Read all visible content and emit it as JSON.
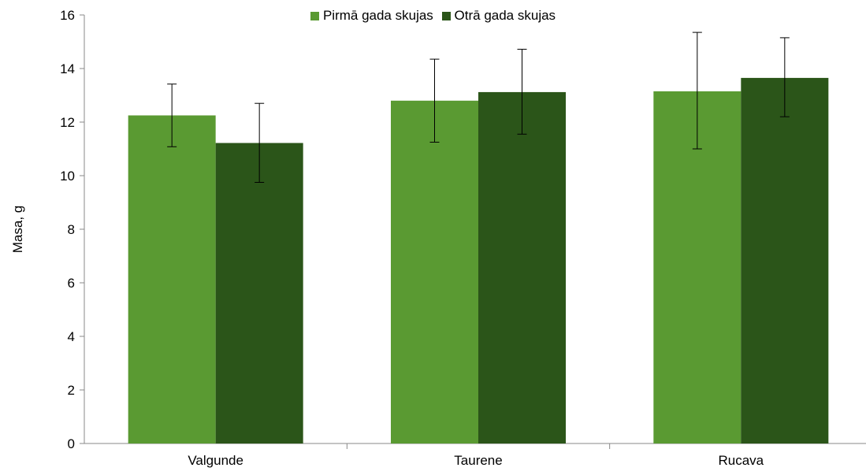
{
  "chart_data": {
    "type": "bar",
    "ylabel": "Masa, g",
    "ylim": [
      0,
      16
    ],
    "yticks": [
      0,
      2,
      4,
      6,
      8,
      10,
      12,
      14,
      16
    ],
    "categories": [
      "Valgunde",
      "Taurene",
      "Rucava"
    ],
    "series": [
      {
        "name": "Pirmā gada skujas",
        "color": "#5a9a32",
        "values": [
          12.25,
          12.8,
          13.15
        ],
        "error_low": [
          11.08,
          11.25,
          11.0
        ],
        "error_high": [
          13.42,
          14.35,
          15.35
        ]
      },
      {
        "name": "Otrā gada skujas",
        "color": "#2b5519",
        "values": [
          11.22,
          13.12,
          13.65
        ],
        "error_low": [
          9.75,
          11.55,
          12.2
        ],
        "error_high": [
          12.7,
          14.72,
          15.15
        ]
      }
    ],
    "legend_position": "top-center",
    "grid": false
  }
}
